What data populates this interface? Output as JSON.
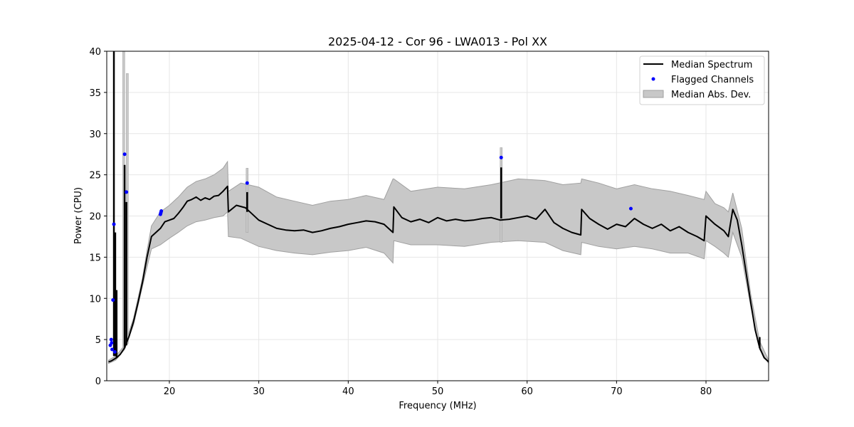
{
  "chart_data": {
    "type": "line",
    "title": "2025-04-12 - Cor 96 - LWA013 - Pol XX",
    "xlabel": "Frequency (MHz)",
    "ylabel": "Power (CPU)",
    "xlim": [
      13,
      87
    ],
    "ylim": [
      0,
      40
    ],
    "xticks": [
      20,
      30,
      40,
      50,
      60,
      70,
      80
    ],
    "yticks": [
      0,
      5,
      10,
      15,
      20,
      25,
      30,
      35,
      40
    ],
    "grid": true,
    "legend_position": "top-right",
    "colors": {
      "median": "#000000",
      "flagged": "#0000ff",
      "mad_fill": "#c8c8c8",
      "mad_edge": "#a0a0a0"
    },
    "legend": [
      {
        "label": "Median Spectrum",
        "kind": "line"
      },
      {
        "label": "Flagged Channels",
        "kind": "point"
      },
      {
        "label": "Median Abs. Dev.",
        "kind": "patch"
      }
    ],
    "series": [
      {
        "name": "Median Spectrum",
        "kind": "line",
        "x": [
          13.2,
          13.5,
          13.8,
          14.1,
          14.5,
          15.0,
          15.5,
          16.0,
          16.5,
          17.0,
          17.5,
          18.0,
          18.5,
          19.0,
          19.5,
          20.0,
          20.5,
          21.0,
          21.5,
          22.0,
          22.5,
          23.0,
          23.5,
          24.0,
          24.5,
          25.0,
          25.5,
          26.0,
          26.5,
          26.6,
          27.5,
          28.5,
          29.0,
          30.0,
          31.0,
          32.0,
          33.0,
          34.0,
          35.0,
          36.0,
          37.0,
          38.0,
          39.0,
          40.0,
          41.0,
          42.0,
          43.0,
          44.0,
          45.0,
          45.1,
          46.0,
          47.0,
          48.0,
          49.0,
          50.0,
          51.0,
          52.0,
          53.0,
          54.0,
          55.0,
          56.0,
          57.0,
          58.0,
          59.0,
          60.0,
          61.0,
          62.0,
          63.0,
          64.0,
          65.0,
          66.0,
          66.1,
          67.0,
          68.0,
          69.0,
          70.0,
          71.0,
          72.0,
          73.0,
          74.0,
          75.0,
          76.0,
          77.0,
          78.0,
          79.0,
          79.8,
          80.0,
          81.0,
          82.0,
          82.5,
          83.0,
          83.5,
          84.0,
          84.5,
          85.0,
          85.5,
          86.0,
          86.5,
          87.0
        ],
        "y": [
          2.3,
          2.4,
          2.6,
          2.8,
          3.2,
          4.0,
          5.4,
          7.2,
          9.5,
          12.0,
          15.0,
          17.5,
          18.0,
          18.5,
          19.3,
          19.5,
          19.7,
          20.3,
          21.0,
          21.8,
          22.0,
          22.3,
          21.9,
          22.2,
          22.0,
          22.4,
          22.5,
          23.0,
          23.6,
          20.5,
          21.3,
          21.0,
          20.5,
          19.5,
          19.0,
          18.5,
          18.3,
          18.2,
          18.3,
          18.0,
          18.2,
          18.5,
          18.7,
          19.0,
          19.2,
          19.4,
          19.3,
          19.0,
          18.0,
          21.1,
          19.8,
          19.3,
          19.6,
          19.2,
          19.8,
          19.4,
          19.6,
          19.4,
          19.5,
          19.7,
          19.8,
          19.5,
          19.6,
          19.8,
          20.0,
          19.6,
          20.8,
          19.2,
          18.5,
          18.0,
          17.7,
          20.8,
          19.7,
          19.0,
          18.4,
          19.0,
          18.7,
          19.7,
          19.0,
          18.5,
          19.0,
          18.2,
          18.7,
          18.0,
          17.5,
          17.0,
          20.0,
          19.0,
          18.2,
          17.5,
          20.8,
          19.5,
          16.5,
          13.0,
          9.5,
          6.2,
          4.0,
          2.8,
          2.3
        ]
      },
      {
        "name": "Median Abs. Dev.",
        "kind": "band",
        "x": [
          13.2,
          14.0,
          15.0,
          16.0,
          17.0,
          17.5,
          18.0,
          19.0,
          20.0,
          21.0,
          22.0,
          23.0,
          24.0,
          25.0,
          26.0,
          26.5,
          26.6,
          28.0,
          30.0,
          32.0,
          34.0,
          36.0,
          38.0,
          40.0,
          42.0,
          44.0,
          45.0,
          45.1,
          47.0,
          50.0,
          53.0,
          56.0,
          59.0,
          62.0,
          64.0,
          66.0,
          66.1,
          68.0,
          70.0,
          72.0,
          74.0,
          76.0,
          78.0,
          79.8,
          80.0,
          81.0,
          82.0,
          82.5,
          83.0,
          84.0,
          85.0,
          86.0,
          87.0
        ],
        "lower": [
          2.1,
          2.5,
          3.8,
          6.8,
          11.5,
          13.8,
          16.0,
          16.5,
          17.3,
          18.0,
          18.8,
          19.3,
          19.5,
          19.8,
          20.0,
          20.5,
          17.5,
          17.3,
          16.3,
          15.8,
          15.5,
          15.3,
          15.6,
          15.8,
          16.2,
          15.5,
          14.3,
          17.0,
          16.5,
          16.5,
          16.3,
          16.8,
          17.0,
          16.8,
          15.8,
          15.3,
          16.8,
          16.3,
          16.0,
          16.3,
          16.0,
          15.5,
          15.5,
          14.8,
          17.0,
          16.3,
          15.5,
          15.0,
          18.0,
          15.0,
          9.0,
          3.8,
          2.1
        ],
        "upper": [
          2.5,
          3.0,
          4.3,
          7.6,
          12.5,
          15.8,
          18.8,
          20.5,
          21.3,
          22.3,
          23.5,
          24.2,
          24.5,
          25.0,
          25.8,
          26.6,
          23.0,
          24.0,
          23.5,
          22.3,
          21.8,
          21.3,
          21.8,
          22.0,
          22.5,
          22.0,
          24.5,
          24.5,
          23.0,
          23.5,
          23.3,
          23.8,
          24.5,
          24.3,
          23.8,
          24.0,
          24.5,
          24.0,
          23.3,
          23.8,
          23.3,
          23.0,
          22.5,
          22.0,
          23.0,
          21.5,
          21.0,
          20.5,
          22.8,
          18.5,
          10.5,
          4.8,
          2.5
        ]
      },
      {
        "name": "Flagged Channels",
        "kind": "scatter",
        "x": [
          13.4,
          13.5,
          13.6,
          13.7,
          13.8,
          13.9,
          13.55,
          15.0,
          15.2,
          19.0,
          19.05,
          19.1,
          28.7,
          57.1,
          71.6
        ],
        "y": [
          4.3,
          5.0,
          3.8,
          9.8,
          19.0,
          3.5,
          4.6,
          27.5,
          22.9,
          20.2,
          20.4,
          20.6,
          24.0,
          27.1,
          20.9
        ]
      }
    ],
    "spikes": [
      {
        "x": 13.8,
        "from": 3.0,
        "to": 40.0
      },
      {
        "x": 13.95,
        "from": 3.0,
        "to": 18.0
      },
      {
        "x": 14.1,
        "from": 2.8,
        "to": 11.0
      },
      {
        "x": 15.0,
        "from": 4.0,
        "to": 26.2
      },
      {
        "x": 15.2,
        "from": 4.3,
        "to": 21.7
      },
      {
        "x": 28.7,
        "from": 20.5,
        "to": 22.9
      },
      {
        "x": 57.1,
        "from": 19.7,
        "to": 25.9
      },
      {
        "x": 86.0,
        "from": 4.0,
        "to": 5.3
      }
    ],
    "band_spikes": [
      {
        "x": 14.9,
        "from": 4.0,
        "to": 40.0
      },
      {
        "x": 15.3,
        "from": 4.5,
        "to": 37.3
      },
      {
        "x": 28.7,
        "from": 18.0,
        "to": 25.8
      },
      {
        "x": 57.1,
        "from": 16.8,
        "to": 28.3
      }
    ]
  }
}
